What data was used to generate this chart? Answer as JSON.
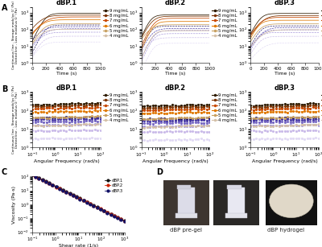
{
  "panel_A_title": [
    "dBP.1",
    "dBP.2",
    "dBP.3"
  ],
  "panel_B_title": [
    "dBP.1",
    "dBP.2",
    "dBP.3"
  ],
  "conc_labels": [
    "9 mg/mL",
    "8 mg/mL",
    "7 mg/mL",
    "6 mg/mL",
    "5 mg/mL",
    "4 mg/mL"
  ],
  "solid_colors": [
    "#2d1a00",
    "#7a3200",
    "#c84800",
    "#e07800",
    "#c8a060",
    "#d4c0a8"
  ],
  "dotted_colors": [
    "#1a1060",
    "#4030a0",
    "#7060c0",
    "#a090d8",
    "#c8b8e8",
    "#e0d8f4"
  ],
  "panel_C_colors": [
    "#111111",
    "#cc2200",
    "#111166"
  ],
  "panel_C_labels": [
    "dBP.1",
    "dBP.2",
    "dBP.3"
  ],
  "ylabel_A": "Continuous line - Storage modulus G' (Pa)\nDotted line - Loss modulus G'' (Pa)",
  "ylabel_B": "Continuous line - Storage modulus G' (Pa)\nDotted line - Loss modulus G'' (Pa)",
  "ylabel_C": "Viscosity (Pa·s)",
  "xlabel_A": "Time (s)",
  "xlabel_B": "Angular Frequency (rad/s)",
  "xlabel_C": "Shear rate (1/s)",
  "bg_color": "#ffffff",
  "panel_label_fontsize": 7,
  "axis_label_fontsize": 4.5,
  "tick_fontsize": 4,
  "title_fontsize": 6,
  "legend_fontsize": 3.8,
  "photo_label_fontsize": 5
}
